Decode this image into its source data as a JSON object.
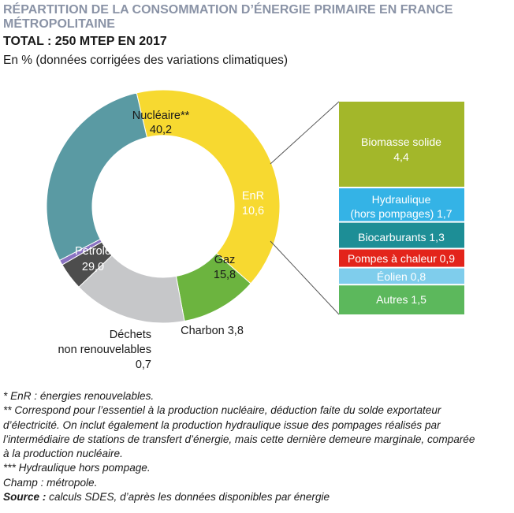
{
  "title": {
    "line1": "RÉPARTITION DE LA CONSOMMATION D’ÉNERGIE PRIMAIRE EN FRANCE",
    "line2": "MÉTROPOLITAINE"
  },
  "total": "TOTAL : 250 MTEP EN 2017",
  "unit_note": "En % (données corrigées des variations climatiques)",
  "colors": {
    "nucleaire": "#f7d930",
    "enr": "#6cb43f",
    "gaz": "#c6c7c9",
    "charbon": "#4d4d4d",
    "dechets": "#8a72c2",
    "petrole": "#5a9aa3",
    "biomasse": "#a3b72a",
    "hydraulique": "#34b3e6",
    "biocarburants": "#1d8e96",
    "pompes": "#e3241b",
    "eolien": "#7fcdec",
    "autres": "#5cb85c"
  },
  "chart_data": [
    {
      "type": "pie",
      "variant": "donut",
      "slices": [
        {
          "key": "nucleaire",
          "label": "Nucléaire**",
          "value": 40.2,
          "value_label": "40,2"
        },
        {
          "key": "enr",
          "label": "EnR",
          "value": 10.6,
          "value_label": "10,6"
        },
        {
          "key": "gaz",
          "label": "Gaz",
          "value": 15.8,
          "value_label": "15,8"
        },
        {
          "key": "charbon",
          "label": "Charbon",
          "value": 3.8,
          "value_label": "3,8"
        },
        {
          "key": "dechets",
          "label": "Déchets non renouvelables",
          "value": 0.7,
          "value_label": "0,7"
        },
        {
          "key": "petrole",
          "label": "Pétrole",
          "value": 29.0,
          "value_label": "29,0"
        }
      ]
    },
    {
      "type": "bar",
      "variant": "stacked-breakdown",
      "parent": "EnR",
      "segments": [
        {
          "key": "biomasse",
          "label": "Biomasse solide",
          "value": 4.4,
          "value_label": "4,4"
        },
        {
          "key": "hydraulique",
          "label": "Hydraulique (hors pompages)",
          "value": 1.7,
          "value_label": "1,7"
        },
        {
          "key": "biocarburants",
          "label": "Biocarburants",
          "value": 1.3,
          "value_label": "1,3"
        },
        {
          "key": "pompes",
          "label": "Pompes à chaleur",
          "value": 0.9,
          "value_label": "0,9"
        },
        {
          "key": "eolien",
          "label": "Éolien",
          "value": 0.8,
          "value_label": "0,8"
        },
        {
          "key": "autres",
          "label": "Autres",
          "value": 1.5,
          "value_label": "1,5"
        }
      ]
    }
  ],
  "labels": {
    "nucleaire": {
      "line1": "Nucléaire**",
      "line2": "40,2"
    },
    "enr": {
      "line1": "EnR",
      "line2": "10,6"
    },
    "gaz": {
      "line1": "Gaz",
      "line2": "15,8"
    },
    "petrole": {
      "line1": "Pétrole",
      "line2": "29,0"
    },
    "charbon": "Charbon 3,8",
    "dechets": {
      "line1": "Déchets",
      "line2": "non renouvelables",
      "line3": "0,7"
    },
    "biomasse": {
      "line1": "Biomasse solide",
      "line2": "4,4"
    },
    "hydraulique": {
      "line1": "Hydraulique",
      "line2": "(hors pompages) 1,7"
    },
    "biocarburants": "Biocarburants 1,3",
    "pompes": "Pompes à chaleur 0,9",
    "eolien": "Éolien 0,8",
    "autres": "Autres 1,5"
  },
  "footnotes": {
    "f1": "* EnR : énergies renouvelables.",
    "f2a": "** Correspond pour l’essentiel à la production nucléaire, déduction faite du solde exportateur",
    "f2b": "d’électricité. On inclut également la production hydraulique issue des pompages réalisés par",
    "f2c": "l’intermédiaire de stations de transfert d’énergie, mais cette dernière demeure marginale, comparée",
    "f2d": "à la production nucléaire.",
    "f3": "*** Hydraulique hors pompage.",
    "champ": "Champ : métropole.",
    "source_label": "Source :",
    "source_text": " calculs SDES, d’après les données disponibles par énergie"
  }
}
